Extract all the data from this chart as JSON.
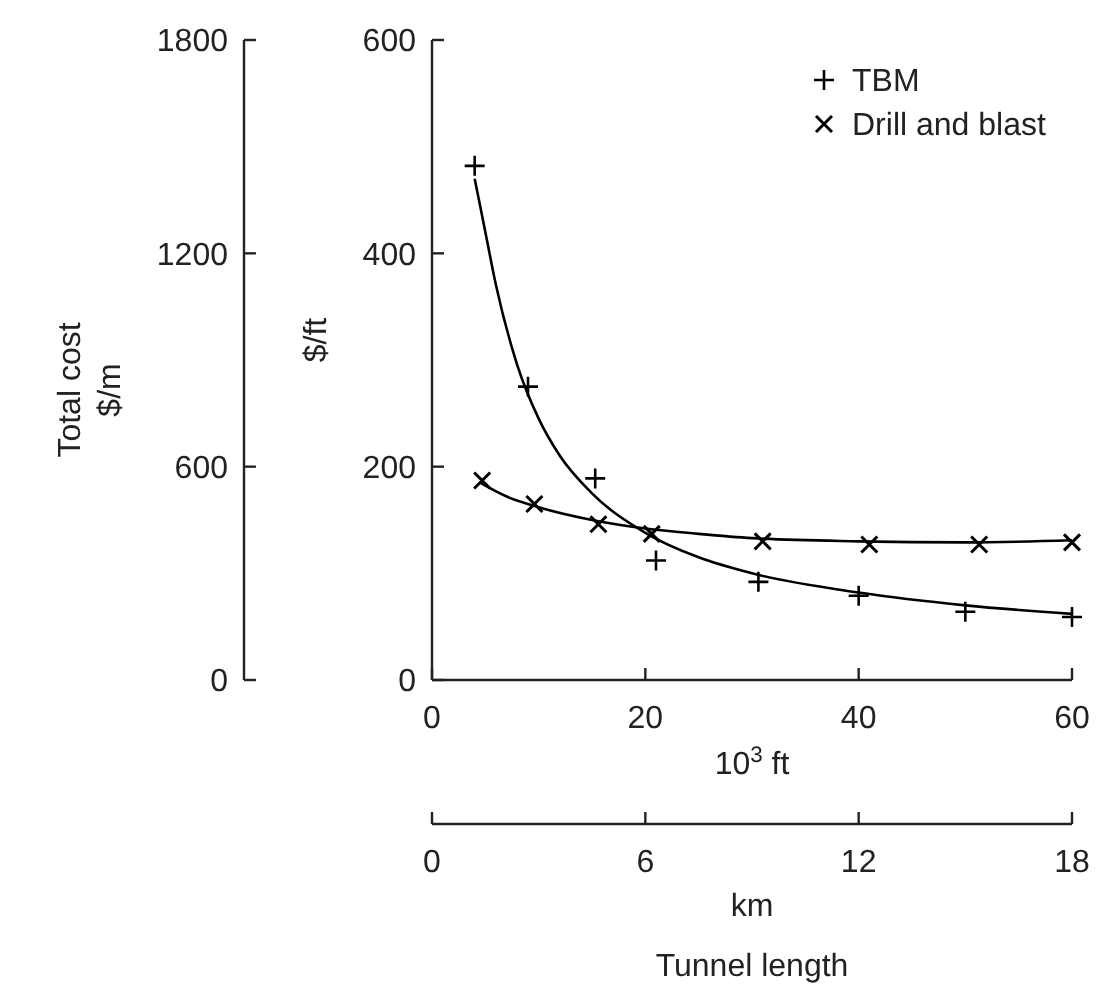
{
  "chart_data": {
    "type": "scatter",
    "xlabel": "10$^{3}$ ft",
    "ylabel": "$/ft",
    "y2label": "Total cost\n$/m",
    "x2label": "km",
    "annotations": [
      "Tunnel length"
    ],
    "xlim": [
      0,
      60
    ],
    "xticks": [
      0,
      20,
      40,
      60
    ],
    "ylim": [
      0,
      600
    ],
    "yticks": [
      0,
      200,
      400,
      600
    ],
    "y2lim": [
      0,
      1800
    ],
    "y2ticks": [
      0,
      600,
      1200,
      1800
    ],
    "x2lim": [
      0,
      18
    ],
    "x2ticks": [
      0,
      6,
      12,
      18
    ],
    "legend": "top right",
    "grid": false,
    "series": [
      {
        "name": "TBM",
        "marker": "cross",
        "color": "#000000",
        "x": [
          4,
          9,
          15.3,
          21,
          30.6,
          40,
          50,
          60
        ],
        "values": [
          482,
          275,
          189,
          112,
          92,
          79,
          64,
          59
        ]
      },
      {
        "name": "Drill and blast",
        "marker": "x",
        "color": "#000000",
        "x": [
          4.7,
          9.6,
          15.6,
          20.6,
          31,
          41,
          51.3,
          60
        ],
        "values": [
          187,
          165,
          146,
          137,
          130,
          127,
          127,
          129
        ]
      },
      {
        "type": "line",
        "color": "#000000",
        "x": [
          4,
          5,
          6,
          8,
          10,
          12,
          15,
          20,
          25,
          30,
          40,
          50,
          60
        ],
        "values": [
          470,
          420,
          370,
          295,
          245,
          210,
          175,
          138,
          115,
          100,
          82,
          70,
          62
        ]
      },
      {
        "type": "line",
        "color": "#000000",
        "x": [
          4.5,
          7,
          10,
          15,
          20,
          25,
          30,
          40,
          50,
          60
        ],
        "values": [
          185,
          172,
          162,
          150,
          142,
          137,
          133,
          130,
          129,
          131
        ]
      }
    ]
  }
}
